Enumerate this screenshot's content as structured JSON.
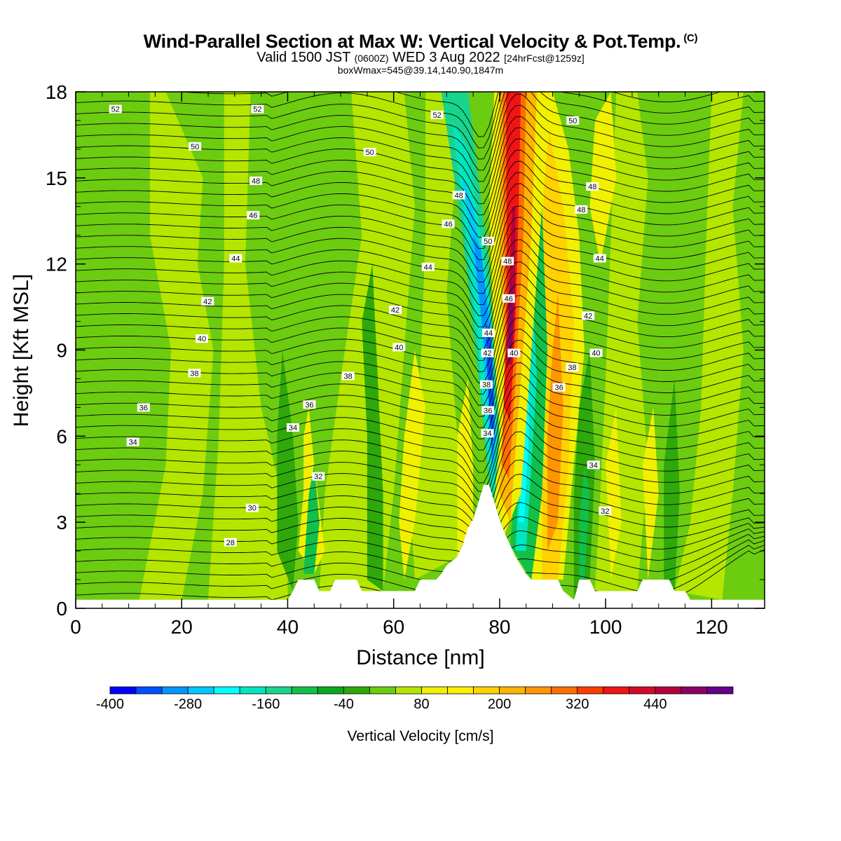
{
  "title": "Wind-Parallel Section at Max W: Vertical Velocity & Pot.Temp.",
  "copyright_mark": "(C)",
  "subtitle": {
    "valid_prefix": "Valid 1500 JST",
    "utc": "(0600Z)",
    "date": "WED 3 Aug 2022",
    "forecast": "[24hrFcst@1259z]"
  },
  "box_info": "boxWmax=545@39.14,140.90,1847m",
  "colors": {
    "background": "#6ccc10",
    "terrain": "#ffffff",
    "isentrope": "#000000"
  },
  "chart_data": {
    "type": "heatmap",
    "xlabel": "Distance [nm]",
    "ylabel": "Height [Kft MSL]",
    "xlim": [
      0,
      130
    ],
    "ylim": [
      0,
      18
    ],
    "x_ticks": [
      "0",
      "20",
      "40",
      "60",
      "80",
      "100",
      "120"
    ],
    "y_ticks": [
      "0",
      "3",
      "6",
      "9",
      "12",
      "15",
      "18"
    ],
    "colorbar": {
      "label": "Vertical Velocity [cm/s]",
      "tick_labels": [
        "-400",
        "-280",
        "-160",
        "-40",
        "80",
        "200",
        "320",
        "440"
      ],
      "levels": [
        -400,
        -360,
        -320,
        -280,
        -240,
        -200,
        -160,
        -120,
        -80,
        -40,
        0,
        40,
        80,
        120,
        160,
        200,
        240,
        280,
        320,
        360,
        400,
        440,
        480,
        520
      ],
      "colors": [
        "#0000ff",
        "#0050ff",
        "#0096ff",
        "#00c8ff",
        "#00ffff",
        "#00e6be",
        "#18d48c",
        "#10c04a",
        "#0aa81e",
        "#2ea80a",
        "#6ccc10",
        "#b4e600",
        "#f0f000",
        "#fff000",
        "#ffd200",
        "#ffb400",
        "#ff9600",
        "#ff6e00",
        "#ff3c00",
        "#f01414",
        "#d20a28",
        "#b4003c",
        "#8c0064",
        "#64008c"
      ]
    },
    "isentrope_labels": [
      {
        "x": 7.5,
        "y": 17.4,
        "text": "52"
      },
      {
        "x": 34.3,
        "y": 17.4,
        "text": "52"
      },
      {
        "x": 68.2,
        "y": 17.2,
        "text": "52"
      },
      {
        "x": 22.5,
        "y": 16.1,
        "text": "50"
      },
      {
        "x": 55.5,
        "y": 15.9,
        "text": "50"
      },
      {
        "x": 93.8,
        "y": 17.0,
        "text": "50"
      },
      {
        "x": 34.0,
        "y": 14.9,
        "text": "48"
      },
      {
        "x": 72.3,
        "y": 14.4,
        "text": "48"
      },
      {
        "x": 97.5,
        "y": 14.7,
        "text": "48"
      },
      {
        "x": 33.5,
        "y": 13.7,
        "text": "46"
      },
      {
        "x": 70.3,
        "y": 13.4,
        "text": "46"
      },
      {
        "x": 95.4,
        "y": 13.9,
        "text": "48"
      },
      {
        "x": 30.2,
        "y": 12.2,
        "text": "44"
      },
      {
        "x": 66.5,
        "y": 11.9,
        "text": "44"
      },
      {
        "x": 98.9,
        "y": 12.2,
        "text": "44"
      },
      {
        "x": 24.9,
        "y": 10.7,
        "text": "42"
      },
      {
        "x": 60.3,
        "y": 10.4,
        "text": "42"
      },
      {
        "x": 96.7,
        "y": 10.2,
        "text": "42"
      },
      {
        "x": 23.8,
        "y": 9.4,
        "text": "40"
      },
      {
        "x": 61.0,
        "y": 9.1,
        "text": "40"
      },
      {
        "x": 98.2,
        "y": 8.9,
        "text": "40"
      },
      {
        "x": 22.4,
        "y": 8.2,
        "text": "38"
      },
      {
        "x": 51.4,
        "y": 8.1,
        "text": "38"
      },
      {
        "x": 93.7,
        "y": 8.4,
        "text": "38"
      },
      {
        "x": 12.8,
        "y": 7.0,
        "text": "36"
      },
      {
        "x": 44.1,
        "y": 7.1,
        "text": "36"
      },
      {
        "x": 91.2,
        "y": 7.7,
        "text": "36"
      },
      {
        "x": 10.8,
        "y": 5.8,
        "text": "34"
      },
      {
        "x": 41.0,
        "y": 6.3,
        "text": "34"
      },
      {
        "x": 97.7,
        "y": 5.0,
        "text": "34"
      },
      {
        "x": 45.8,
        "y": 4.6,
        "text": "32"
      },
      {
        "x": 99.9,
        "y": 3.4,
        "text": "32"
      },
      {
        "x": 33.3,
        "y": 3.5,
        "text": "30"
      },
      {
        "x": 29.2,
        "y": 2.3,
        "text": "28"
      },
      {
        "x": 77.8,
        "y": 12.8,
        "text": "50"
      },
      {
        "x": 81.5,
        "y": 12.1,
        "text": "48"
      },
      {
        "x": 81.7,
        "y": 10.8,
        "text": "46"
      },
      {
        "x": 77.9,
        "y": 9.6,
        "text": "44"
      },
      {
        "x": 77.7,
        "y": 8.9,
        "text": "42"
      },
      {
        "x": 82.7,
        "y": 8.9,
        "text": "40"
      },
      {
        "x": 77.5,
        "y": 7.8,
        "text": "38"
      },
      {
        "x": 77.8,
        "y": 6.9,
        "text": "36"
      },
      {
        "x": 77.7,
        "y": 6.1,
        "text": "34"
      }
    ],
    "terrain_profile_kft": [
      [
        0,
        0.3
      ],
      [
        40,
        0.3
      ],
      [
        41,
        0.6
      ],
      [
        42,
        1.0
      ],
      [
        45,
        1.0
      ],
      [
        46,
        0.6
      ],
      [
        48,
        0.6
      ],
      [
        49,
        1.0
      ],
      [
        53,
        1.0
      ],
      [
        54,
        0.6
      ],
      [
        64,
        0.6
      ],
      [
        65,
        1.0
      ],
      [
        68,
        1.0
      ],
      [
        69,
        1.2
      ],
      [
        70,
        1.5
      ],
      [
        72,
        1.8
      ],
      [
        73,
        2.2
      ],
      [
        74,
        2.8
      ],
      [
        75,
        3.1
      ],
      [
        76,
        3.7
      ],
      [
        77,
        4.3
      ],
      [
        78,
        4.3
      ],
      [
        79,
        3.7
      ],
      [
        80,
        3.1
      ],
      [
        81,
        2.6
      ],
      [
        82,
        2.2
      ],
      [
        83,
        1.8
      ],
      [
        84,
        1.5
      ],
      [
        85,
        1.2
      ],
      [
        86,
        1.0
      ],
      [
        91,
        1.0
      ],
      [
        92,
        0.6
      ],
      [
        94,
        0.3
      ],
      [
        94.5,
        0.6
      ],
      [
        95,
        1.0
      ],
      [
        97,
        1.0
      ],
      [
        98,
        0.6
      ],
      [
        106,
        0.6
      ],
      [
        107,
        1.0
      ],
      [
        112,
        1.0
      ],
      [
        113,
        0.6
      ],
      [
        115,
        0.6
      ],
      [
        116,
        0.3
      ],
      [
        130,
        0.3
      ]
    ]
  }
}
